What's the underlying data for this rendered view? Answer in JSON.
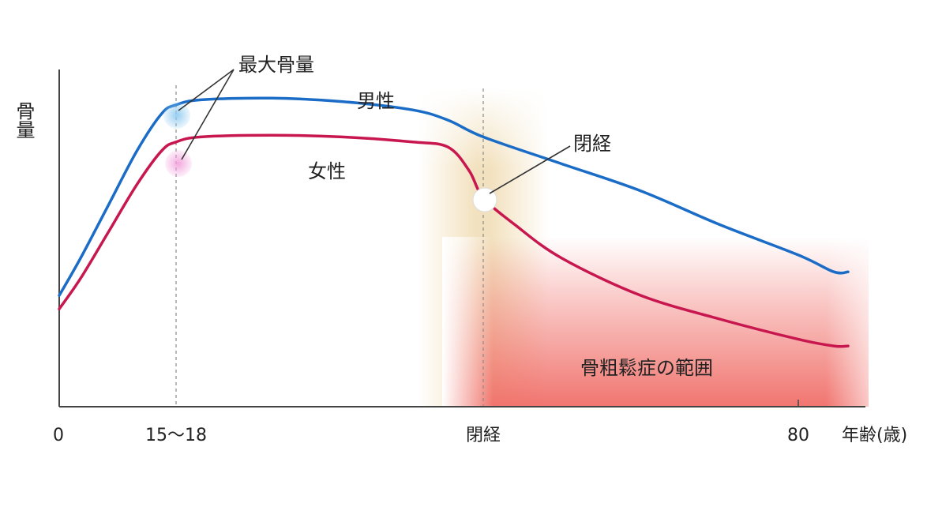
{
  "colors": {
    "male": "#1a6cc7",
    "female": "#c8174f",
    "osteo_zone": "#f06e68",
    "menopause_zone": "#e8c888",
    "axis": "#444444",
    "text": "#222222"
  },
  "chart_data": {
    "type": "line",
    "title": "",
    "xlabel": "年齢(歳)",
    "ylabel": "骨量",
    "x_ticks": [
      {
        "value": 0,
        "label": "0"
      },
      {
        "value": 16.5,
        "label": "15〜18"
      },
      {
        "value": 60,
        "label": "閉経"
      },
      {
        "value": 80,
        "label": "80"
      }
    ],
    "xlim": [
      0,
      87
    ],
    "ylim": [
      0,
      100
    ],
    "series": [
      {
        "name": "男性",
        "color": "#1a6cc7",
        "points": [
          [
            0,
            33
          ],
          [
            3,
            44
          ],
          [
            7,
            60
          ],
          [
            11,
            76
          ],
          [
            14.5,
            87
          ],
          [
            16.5,
            89.5
          ],
          [
            20,
            91
          ],
          [
            30,
            91.5
          ],
          [
            40,
            90.5
          ],
          [
            50,
            88
          ],
          [
            55,
            85
          ],
          [
            60,
            80
          ],
          [
            65,
            72
          ],
          [
            70,
            64
          ],
          [
            75,
            54
          ],
          [
            80,
            45
          ],
          [
            85,
            40
          ],
          [
            87,
            40
          ]
        ]
      },
      {
        "name": "女性",
        "color": "#c8174f",
        "points": [
          [
            0,
            29
          ],
          [
            3,
            38
          ],
          [
            7,
            52
          ],
          [
            11,
            66
          ],
          [
            14.5,
            76
          ],
          [
            16.5,
            78.5
          ],
          [
            20,
            80
          ],
          [
            30,
            80.5
          ],
          [
            40,
            80
          ],
          [
            50,
            78.5
          ],
          [
            55,
            77
          ],
          [
            58,
            70
          ],
          [
            60,
            62
          ],
          [
            62,
            54
          ],
          [
            65,
            44
          ],
          [
            70,
            33
          ],
          [
            75,
            26
          ],
          [
            80,
            20
          ],
          [
            85,
            18
          ],
          [
            87,
            18
          ]
        ]
      }
    ],
    "annotations": {
      "peak_bone_mass": "最大骨量",
      "menopause": "閉経",
      "osteoporosis_range": "骨粗鬆症の範囲"
    }
  }
}
